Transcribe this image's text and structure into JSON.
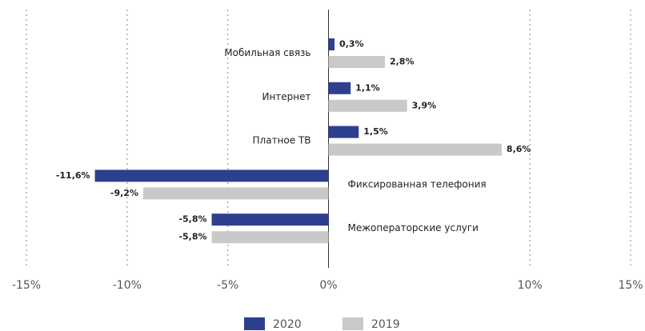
{
  "chart_data": {
    "type": "hbar",
    "categories": [
      "Мобильная связь",
      "Интернет",
      "Платное ТВ",
      "Фиксированная телефония",
      "Межоператорские услуги"
    ],
    "series": [
      {
        "name": "2020",
        "color": "#2f3f8f",
        "values": [
          0.3,
          1.1,
          1.5,
          -11.6,
          -5.8
        ],
        "value_labels": [
          "0,3%",
          "1,1%",
          "1,5%",
          "-11,6%",
          "-5,8%"
        ]
      },
      {
        "name": "2019",
        "color": "#c9c9c9",
        "values": [
          2.8,
          3.9,
          8.6,
          -9.2,
          -5.8
        ],
        "value_labels": [
          "2,8%",
          "3,9%",
          "8,6%",
          "-9,2%",
          "-5,8%"
        ]
      }
    ],
    "xlim": [
      -15,
      15
    ],
    "xticks": [
      {
        "value": -15,
        "label": "-15%"
      },
      {
        "value": -10,
        "label": "-10%"
      },
      {
        "value": -5,
        "label": "-5%"
      },
      {
        "value": 0,
        "label": "0%"
      },
      {
        "value": 10,
        "label": "10%"
      },
      {
        "value": 15,
        "label": "15%"
      }
    ],
    "grid": true,
    "legend": "bottom"
  }
}
